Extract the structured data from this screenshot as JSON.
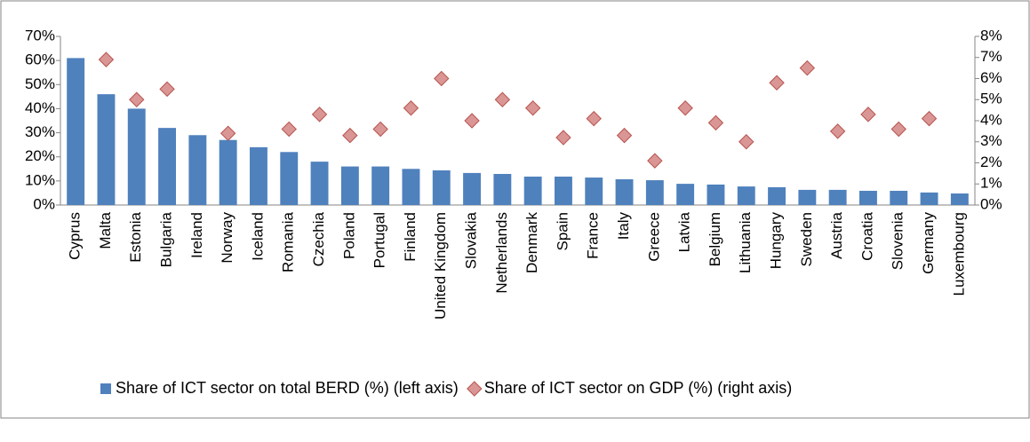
{
  "chart_data": {
    "type": "bar",
    "categories": [
      "Cyprus",
      "Malta",
      "Estonia",
      "Bulgaria",
      "Ireland",
      "Norway",
      "Iceland",
      "Romania",
      "Czechia",
      "Poland",
      "Portugal",
      "Finland",
      "United Kingdom",
      "Slovakia",
      "Netherlands",
      "Denmark",
      "Spain",
      "France",
      "Italy",
      "Greece",
      "Latvia",
      "Belgium",
      "Lithuania",
      "Hungary",
      "Sweden",
      "Austria",
      "Croatia",
      "Slovenia",
      "Germany",
      "Luxembourg"
    ],
    "series": [
      {
        "name": "Share of ICT sector on total BERD (%) (left axis)",
        "type": "bar",
        "axis": "y",
        "color": "#4f81bd",
        "values": [
          61,
          46,
          40,
          32,
          29,
          27,
          24,
          22,
          18,
          16,
          16,
          15,
          14.4,
          13.3,
          12.9,
          11.8,
          11.8,
          11.4,
          10.7,
          10.3,
          8.8,
          8.5,
          7.7,
          7.4,
          6.3,
          6.3,
          5.9,
          5.9,
          5.2,
          4.8
        ]
      },
      {
        "name": "Share of ICT sector on GDP (%) (right axis)",
        "type": "scatter",
        "axis": "y2",
        "color": "#d99694",
        "values": [
          null,
          6.9,
          5.0,
          5.5,
          null,
          3.4,
          null,
          3.6,
          4.3,
          3.3,
          3.6,
          4.6,
          6.0,
          4.0,
          5.0,
          4.6,
          3.2,
          4.1,
          3.3,
          2.1,
          4.6,
          3.9,
          3.0,
          5.8,
          6.5,
          3.5,
          4.3,
          3.6,
          4.1,
          null
        ]
      }
    ],
    "ylim": [
      0,
      70
    ],
    "yticks": [
      {
        "value": 0,
        "label": "0%"
      },
      {
        "value": 10,
        "label": "10%"
      },
      {
        "value": 20,
        "label": "20%"
      },
      {
        "value": 30,
        "label": "30%"
      },
      {
        "value": 40,
        "label": "40%"
      },
      {
        "value": 50,
        "label": "50%"
      },
      {
        "value": 60,
        "label": "60%"
      },
      {
        "value": 70,
        "label": "70%"
      }
    ],
    "y2lim": [
      0,
      8
    ],
    "y2ticks": [
      {
        "value": 0,
        "label": "0%"
      },
      {
        "value": 1,
        "label": "1%"
      },
      {
        "value": 2,
        "label": "2%"
      },
      {
        "value": 3,
        "label": "3%"
      },
      {
        "value": 4,
        "label": "4%"
      },
      {
        "value": 5,
        "label": "5%"
      },
      {
        "value": 6,
        "label": "6%"
      },
      {
        "value": 7,
        "label": "7%"
      },
      {
        "value": 8,
        "label": "8%"
      }
    ],
    "legend": "bottom"
  }
}
